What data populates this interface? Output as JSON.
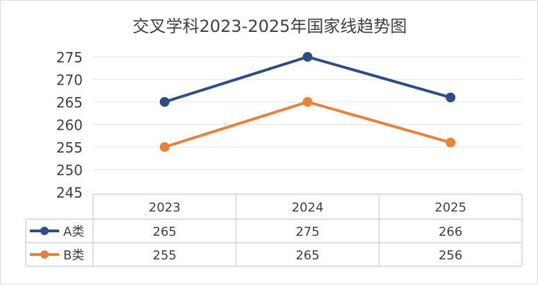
{
  "chart_data": {
    "type": "line",
    "title": "交叉学科2023-2025年国家线趋势图",
    "categories": [
      "2023",
      "2024",
      "2025"
    ],
    "series": [
      {
        "name": "A类",
        "values": [
          265,
          275,
          266
        ],
        "color": "#2E4C86"
      },
      {
        "name": "B类",
        "values": [
          255,
          265,
          256
        ],
        "color": "#E8823A"
      }
    ],
    "ylim": [
      245,
      275
    ],
    "yticks": [
      245,
      250,
      255,
      260,
      265,
      270,
      275
    ],
    "grid": true,
    "legend": "data-table-left",
    "data_table": true
  }
}
